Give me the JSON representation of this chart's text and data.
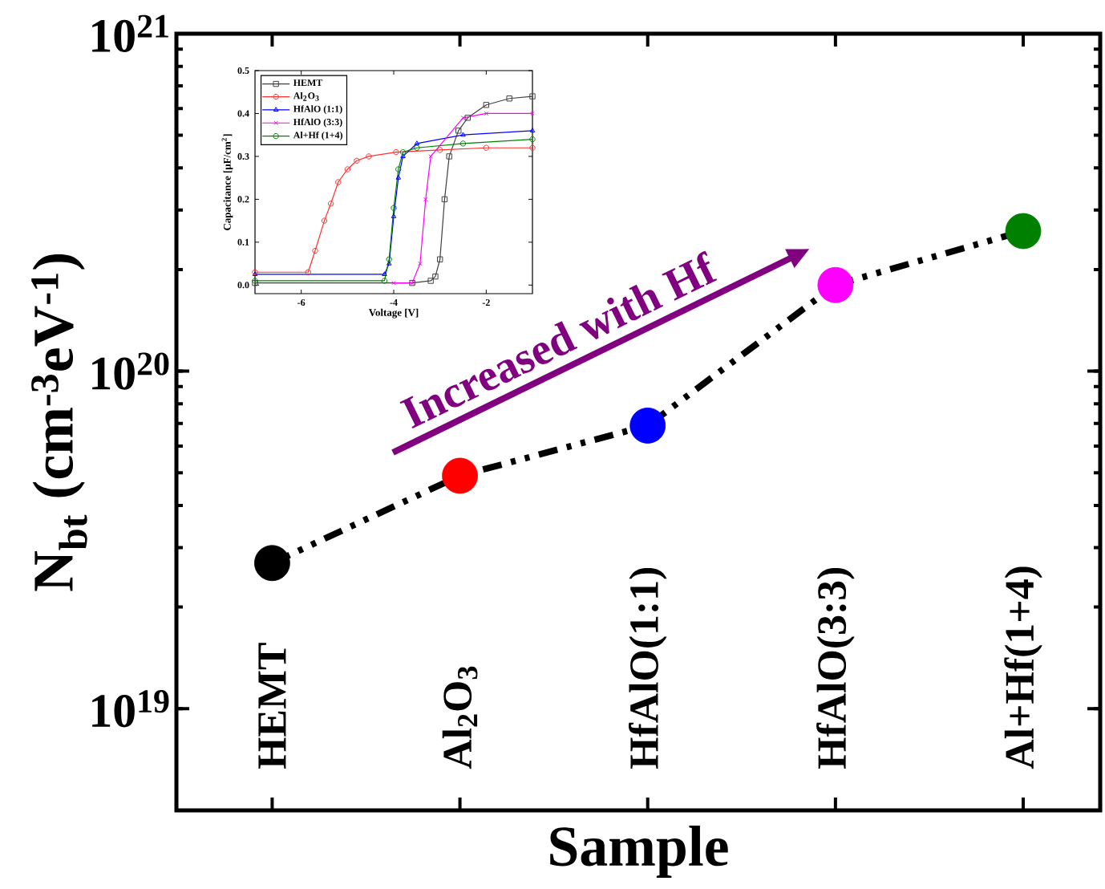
{
  "chart_data": [
    {
      "type": "line",
      "categories": [
        "HEMT",
        "Al$_{2}$O$_{3}$",
        "HfAlO(1:1)",
        "HfAlO(3:3)",
        "Al+Hf(1+4)"
      ],
      "xlabel": "Sample",
      "ylabel": "N$_{bt}$ (cm$^{-3}$eV$^{-1}$)",
      "log": true,
      "ylim": [
        5e+18,
        1e+21
      ],
      "yticks": [
        {
          "value": 1e+19,
          "label": "10$^{19}$"
        },
        {
          "value": 1e+20,
          "label": "10$^{20}$"
        },
        {
          "value": 1e+21,
          "label": "10$^{21}$"
        }
      ],
      "marker": "circle",
      "line_style": "dashed",
      "annotations": [
        "Increased with Hf"
      ],
      "series": [
        {
          "color": "#000000",
          "colors": [
            "#000000",
            "#ff0000",
            "#0000ff",
            "#ff00ff",
            "#008000"
          ],
          "values": [
            2.7e+19,
            4.9e+19,
            6.9e+19,
            1.8e+20,
            2.6e+20
          ]
        }
      ]
    },
    {
      "type": "line",
      "xlabel": "Voltage [V]",
      "ylabel": "Capacitance [μF/cm$^{2}$]",
      "xlim": [
        -7,
        -1
      ],
      "ylim": [
        -0.02,
        0.5
      ],
      "xticks": [
        -6,
        -4,
        -2
      ],
      "yticks": [
        {
          "value": 0,
          "label": "0.0"
        },
        {
          "value": 0.1,
          "label": "0.1"
        },
        {
          "value": 0.2,
          "label": "0.2"
        },
        {
          "value": 0.3,
          "label": "0.3"
        },
        {
          "value": 0.4,
          "label": "0.4"
        },
        {
          "value": 0.5,
          "label": "0.5"
        }
      ],
      "legend": "top left",
      "line_style": "solid",
      "series": [
        {
          "name": "HEMT",
          "color": "#404040",
          "marker": "square",
          "x": [
            -7,
            -3.6,
            -3.2,
            -3.1,
            -3.0,
            -2.9,
            -2.8,
            -2.6,
            -2.4,
            -2.0,
            -1.5,
            -1
          ],
          "values": [
            0.005,
            0.005,
            0.01,
            0.02,
            0.06,
            0.2,
            0.3,
            0.36,
            0.39,
            0.42,
            0.435,
            0.44
          ]
        },
        {
          "name": "Al$_{2}$O$_{3}$",
          "color": "#ff3030",
          "marker": "circle",
          "x": [
            -7,
            -5.85,
            -5.7,
            -5.5,
            -5.36,
            -5.2,
            -5.0,
            -4.8,
            -4.54,
            -3.95,
            -3.0,
            -2.0,
            -1
          ],
          "values": [
            0.03,
            0.03,
            0.08,
            0.15,
            0.19,
            0.24,
            0.27,
            0.29,
            0.3,
            0.31,
            0.315,
            0.32,
            0.32
          ]
        },
        {
          "name": "HfAlO (1:1)",
          "color": "#0000ff",
          "marker": "triangle",
          "x": [
            -7,
            -4.2,
            -4.1,
            -4.0,
            -3.9,
            -3.8,
            -3.5,
            -2.5,
            -1
          ],
          "values": [
            0.025,
            0.025,
            0.05,
            0.16,
            0.25,
            0.3,
            0.33,
            0.35,
            0.36
          ]
        },
        {
          "name": "HfAlO (3:3)",
          "color": "#ff00ff",
          "marker": "cross",
          "x": [
            -4.0,
            -3.6,
            -3.43,
            -3.31,
            -3.2,
            -2.5,
            -2.0,
            -1
          ],
          "values": [
            0.005,
            0.005,
            0.05,
            0.2,
            0.3,
            0.39,
            0.4,
            0.4
          ]
        },
        {
          "name": "Al+Hf (1+4)",
          "color": "#008000",
          "marker": "circle",
          "x": [
            -7,
            -4.2,
            -4.1,
            -4.0,
            -3.9,
            -3.8,
            -3.5,
            -2.5,
            -1
          ],
          "values": [
            0.01,
            0.01,
            0.06,
            0.18,
            0.27,
            0.31,
            0.32,
            0.33,
            0.34
          ]
        }
      ]
    }
  ]
}
